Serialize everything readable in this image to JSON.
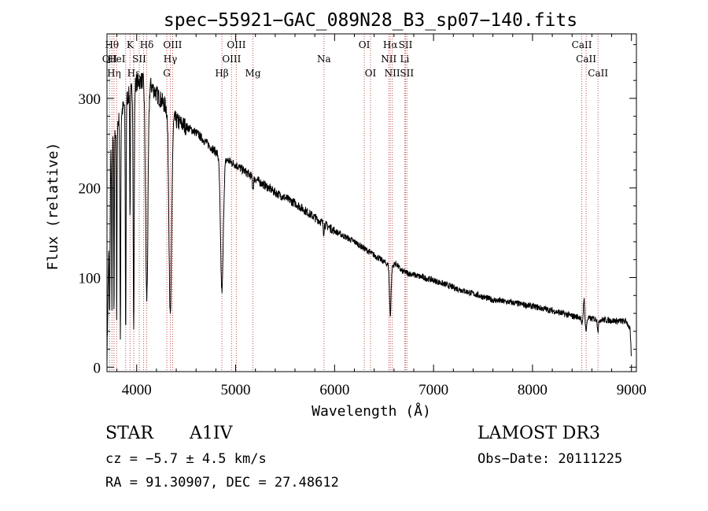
{
  "chart_data": {
    "type": "line",
    "title": "spec−55921−GAC_089N28_B3_sp07−140.fits",
    "xlabel": "Wavelength (Å)",
    "ylabel": "Flux (relative)",
    "xlim": [
      3700,
      9050
    ],
    "ylim": [
      -5,
      372
    ],
    "xticks": [
      4000,
      5000,
      6000,
      7000,
      8000,
      9000
    ],
    "xtick_labels": [
      "4000",
      "5000",
      "6000",
      "7000",
      "8000",
      "9000"
    ],
    "yticks": [
      0,
      100,
      200,
      300
    ],
    "ytick_labels": [
      "0",
      "100",
      "200",
      "300"
    ],
    "grid": false,
    "series": [
      {
        "name": "flux",
        "continuum": [
          [
            3700,
            5
          ],
          [
            3715,
            120
          ],
          [
            3740,
            240
          ],
          [
            3800,
            270
          ],
          [
            3900,
            300
          ],
          [
            4000,
            318
          ],
          [
            4100,
            322
          ],
          [
            4200,
            305
          ],
          [
            4400,
            275
          ],
          [
            4600,
            262
          ],
          [
            4800,
            240
          ],
          [
            4900,
            232
          ],
          [
            5000,
            226
          ],
          [
            5200,
            210
          ],
          [
            5400,
            195
          ],
          [
            5600,
            183
          ],
          [
            5800,
            167
          ],
          [
            6000,
            152
          ],
          [
            6200,
            140
          ],
          [
            6400,
            125
          ],
          [
            6600,
            110
          ],
          [
            6800,
            103
          ],
          [
            7000,
            97
          ],
          [
            7200,
            89
          ],
          [
            7400,
            82
          ],
          [
            7600,
            75
          ],
          [
            7800,
            72
          ],
          [
            8000,
            68
          ],
          [
            8200,
            63
          ],
          [
            8400,
            57
          ],
          [
            8600,
            54
          ],
          [
            8800,
            52
          ],
          [
            8950,
            51
          ],
          [
            8985,
            42
          ],
          [
            9000,
            10
          ]
        ],
        "absorption_lines": [
          {
            "center": 3727,
            "depth": 120,
            "width": 4
          },
          {
            "center": 3750,
            "depth": 190,
            "width": 3
          },
          {
            "center": 3771,
            "depth": 210,
            "width": 3
          },
          {
            "center": 3798,
            "depth": 220,
            "width": 3
          },
          {
            "center": 3835,
            "depth": 250,
            "width": 4
          },
          {
            "center": 3889,
            "depth": 260,
            "width": 4
          },
          {
            "center": 3933,
            "depth": 140,
            "width": 3
          },
          {
            "center": 3970,
            "depth": 275,
            "width": 5
          },
          {
            "center": 4102,
            "depth": 245,
            "width": 12
          },
          {
            "center": 4340,
            "depth": 230,
            "width": 13
          },
          {
            "center": 4861,
            "depth": 150,
            "width": 14
          },
          {
            "center": 5175,
            "depth": 12,
            "width": 6
          },
          {
            "center": 5890,
            "depth": 10,
            "width": 4
          },
          {
            "center": 6563,
            "depth": 55,
            "width": 8
          },
          {
            "center": 8498,
            "depth": 10,
            "width": 5
          },
          {
            "center": 8542,
            "depth": 14,
            "width": 6
          },
          {
            "center": 8662,
            "depth": 12,
            "width": 6
          }
        ],
        "emission_lines": [
          {
            "center": 8520,
            "height": 22,
            "width": 5
          },
          {
            "center": 6620,
            "height": 6,
            "width": 25
          }
        ]
      }
    ],
    "line_markers": [
      {
        "wavelength": 3727,
        "label": "OII",
        "tier": 2
      },
      {
        "wavelength": 3750,
        "label": "Hθ",
        "tier": 1
      },
      {
        "wavelength": 3771,
        "label": "Hη",
        "tier": 3
      },
      {
        "wavelength": 3798,
        "label": "HeI",
        "tier": 2
      },
      {
        "wavelength": 3889,
        "label": "",
        "tier": 0
      },
      {
        "wavelength": 3933,
        "label": "K",
        "tier": 1
      },
      {
        "wavelength": 3970,
        "label": "Hε",
        "tier": 3
      },
      {
        "wavelength": 4026,
        "label": "SII",
        "tier": 2
      },
      {
        "wavelength": 4070,
        "label": "",
        "tier": 0
      },
      {
        "wavelength": 4102,
        "label": "Hδ",
        "tier": 1
      },
      {
        "wavelength": 4305,
        "label": "G",
        "tier": 3
      },
      {
        "wavelength": 4340,
        "label": "Hγ",
        "tier": 2
      },
      {
        "wavelength": 4363,
        "label": "OIII",
        "tier": 1
      },
      {
        "wavelength": 4861,
        "label": "Hβ",
        "tier": 3
      },
      {
        "wavelength": 4959,
        "label": "OIII",
        "tier": 2
      },
      {
        "wavelength": 5007,
        "label": "OIII",
        "tier": 1
      },
      {
        "wavelength": 5175,
        "label": "Mg",
        "tier": 3
      },
      {
        "wavelength": 5893,
        "label": "Na",
        "tier": 2
      },
      {
        "wavelength": 6300,
        "label": "OI",
        "tier": 1
      },
      {
        "wavelength": 6363,
        "label": "OI",
        "tier": 3
      },
      {
        "wavelength": 6548,
        "label": "NII",
        "tier": 2
      },
      {
        "wavelength": 6563,
        "label": "Hα",
        "tier": 1
      },
      {
        "wavelength": 6583,
        "label": "NII",
        "tier": 3
      },
      {
        "wavelength": 6708,
        "label": "Li",
        "tier": 2
      },
      {
        "wavelength": 6717,
        "label": "SII",
        "tier": 1
      },
      {
        "wavelength": 6731,
        "label": "SII",
        "tier": 3
      },
      {
        "wavelength": 8498,
        "label": "CaII",
        "tier": 1
      },
      {
        "wavelength": 8542,
        "label": "CaII",
        "tier": 2
      },
      {
        "wavelength": 8662,
        "label": "CaII",
        "tier": 3
      }
    ]
  },
  "info": {
    "object_class": "STAR",
    "subclass": "A1IV",
    "survey": "LAMOST DR3",
    "cz_text": "cz = −5.7 ± 4.5 km/s",
    "obs_date_text": "Obs−Date: 20111225",
    "ra_dec_text": "RA =  91.30907, DEC =  27.48612"
  },
  "colors": {
    "axes": "#000000",
    "spectrum": "#000000",
    "marker_lines": "#c0504d"
  }
}
